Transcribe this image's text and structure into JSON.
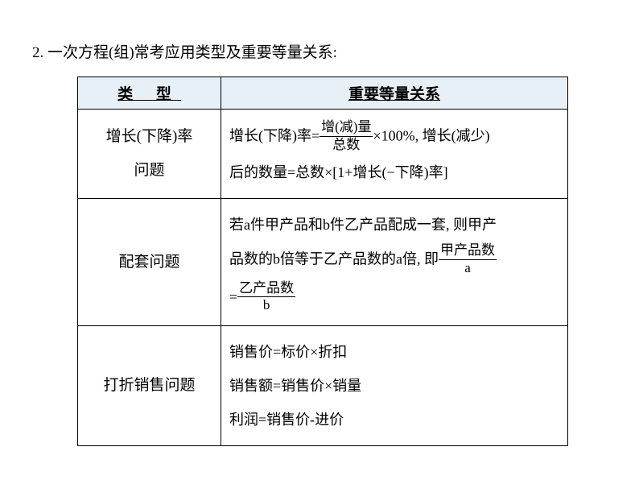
{
  "title": "2. 一次方程(组)常考应用类型及重要等量关系:",
  "table": {
    "headers": {
      "type": "类  型",
      "relation": "重要等量关系"
    },
    "rows": [
      {
        "type_line1": "增长(下降)率",
        "type_line2": "问题",
        "rel_pre1": "增长(下降)率=",
        "rel_frac1_num": "增(减)量",
        "rel_frac1_den": "总数",
        "rel_post1": "×100%, 增长(减少)",
        "rel_line2": "后的数量=总数×[1+增长(−下降)率]"
      },
      {
        "type_line1": "配套问题",
        "rel_line1": "若a件甲产品和b件乙产品配成一套, 则甲产",
        "rel_pre2": "品数的b倍等于乙产品数的a倍, 即",
        "rel_frac2_num": "甲产品数",
        "rel_frac2_den": "a",
        "rel_pre3": "=",
        "rel_frac3_num": "乙产品数",
        "rel_frac3_den": "b"
      },
      {
        "type_line1": "打折销售问题",
        "rel_line1": "销售价=标价×折扣",
        "rel_line2": "销售额=销售价×销量",
        "rel_line3": "利润=销售价-进价"
      }
    ]
  },
  "style": {
    "background": "#ffffff",
    "header_bg": "#e8f0f7",
    "border_color": "#000000",
    "text_color": "#000000",
    "title_fontsize": 19,
    "cell_fontsize": 18
  }
}
